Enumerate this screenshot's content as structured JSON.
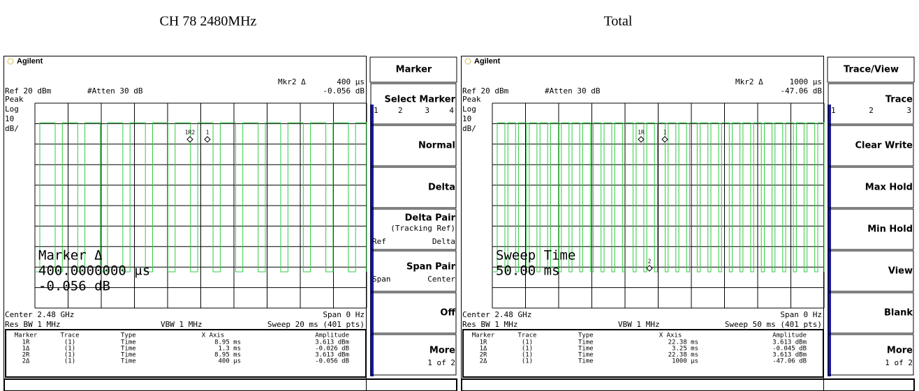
{
  "captions": [
    "CH 78 2480MHz",
    "Total"
  ],
  "screens": [
    {
      "brand": "Agilent",
      "marker_readout": "Mkr2 Δ",
      "marker_x": "400 μs",
      "marker_value": "-0.056 dB",
      "ref": "Ref 20 dBm",
      "atten": "#Atten 30 dB",
      "scale_labels": [
        "Peak",
        "Log",
        "10",
        "dB/"
      ],
      "marker_tags": [
        "1R2",
        "1"
      ],
      "active_function": [
        "Marker Δ",
        "400.0000000 μs",
        "-0.056 dB"
      ],
      "center": "Center 2.48 GHz",
      "span": "Span 0 Hz",
      "rbw": "Res BW 1 MHz",
      "vbw": "VBW 1 MHz",
      "sweep": "Sweep 20 ms (401 pts)",
      "table": {
        "header": [
          "Marker",
          "Trace",
          "Type",
          "X Axis",
          "Amplitude"
        ],
        "rows": [
          [
            "1R",
            "(1)",
            "Time",
            "8.95 ms",
            "3.613 dBm"
          ],
          [
            "1Δ",
            "(1)",
            "Time",
            "1.3 ms",
            "-0.026 dB"
          ],
          [
            "2R",
            "(1)",
            "Time",
            "8.95 ms",
            "3.613 dBm"
          ],
          [
            "2Δ",
            "(1)",
            "Time",
            "400 μs",
            "-0.056 dB"
          ]
        ]
      },
      "menu": {
        "title": "Marker",
        "keys": [
          {
            "label": "Select Marker",
            "sub": [
              "1",
              "2",
              "3",
              "4"
            ]
          },
          {
            "label": "Normal",
            "sub": []
          },
          {
            "label": "Delta",
            "sub": []
          },
          {
            "label": "Delta Pair",
            "sub": [
              "(Tracking Ref)",
              "Ref",
              "Delta"
            ]
          },
          {
            "label": "Span Pair",
            "sub": [
              "Span",
              "Center"
            ]
          },
          {
            "label": "Off",
            "sub": []
          },
          {
            "label": "More",
            "sub": [
              "1 of 2"
            ]
          }
        ]
      }
    },
    {
      "brand": "Agilent",
      "marker_readout": "Mkr2 Δ",
      "marker_x": "1000 μs",
      "marker_value": "-47.06 dB",
      "ref": "Ref 20 dBm",
      "atten": "#Atten 30 dB",
      "scale_labels": [
        "Peak",
        "Log",
        "10",
        "dB/"
      ],
      "marker_tags": [
        "1R",
        "1",
        "2"
      ],
      "active_function": [
        "Sweep Time",
        "50.00 ms"
      ],
      "center": "Center 2.48 GHz",
      "span": "Span 0 Hz",
      "rbw": "Res BW 1 MHz",
      "vbw": "VBW 1 MHz",
      "sweep": "Sweep 50 ms (401 pts)",
      "table": {
        "header": [
          "Marker",
          "Trace",
          "Type",
          "X Axis",
          "Amplitude"
        ],
        "rows": [
          [
            "1R",
            "(1)",
            "Time",
            "22.38 ms",
            "3.613 dBm"
          ],
          [
            "1Δ",
            "(1)",
            "Time",
            "3.25 ms",
            "-0.045 dB"
          ],
          [
            "2R",
            "(1)",
            "Time",
            "22.38 ms",
            "3.613 dBm"
          ],
          [
            "2Δ",
            "(1)",
            "Time",
            "1000 μs",
            "-47.06 dB"
          ]
        ]
      },
      "menu": {
        "title": "Trace/View",
        "keys": [
          {
            "label": "Trace",
            "sub": [
              "1",
              "2",
              "3"
            ]
          },
          {
            "label": "Clear Write",
            "sub": []
          },
          {
            "label": "Max Hold",
            "sub": []
          },
          {
            "label": "Min Hold",
            "sub": []
          },
          {
            "label": "View",
            "sub": []
          },
          {
            "label": "Blank",
            "sub": []
          },
          {
            "label": "More",
            "sub": [
              "1 of 2"
            ]
          }
        ]
      }
    }
  ]
}
